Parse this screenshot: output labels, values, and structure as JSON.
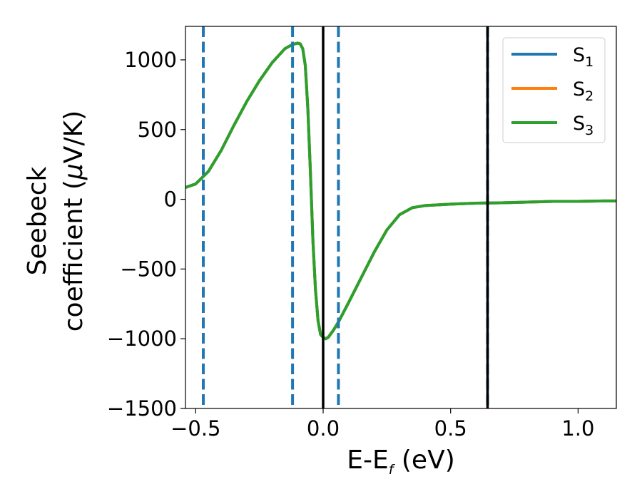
{
  "chart_data": {
    "type": "line",
    "xlabel": "E-E",
    "xlabel_sub": "f",
    "xlabel_unit": " (eV)",
    "ylabel_line1": "Seebeck",
    "ylabel_line2_prefix": "coefficient  (",
    "ylabel_line2_mu": "μ",
    "ylabel_line2_suffix": "V/K)",
    "xlim": [
      -0.54,
      1.15
    ],
    "ylim": [
      -1500,
      1240
    ],
    "xticks": [
      -0.5,
      0.0,
      0.5,
      1.0
    ],
    "xtick_labels": [
      "−0.5",
      "0.0",
      "0.5",
      "1.0"
    ],
    "yticks": [
      -1500,
      -1000,
      -500,
      0,
      500,
      1000
    ],
    "ytick_labels": [
      "−1500",
      "−1000",
      "−500",
      "0",
      "500",
      "1000"
    ],
    "grid": false,
    "legend_position": "top-right",
    "series": [
      {
        "name": "S",
        "sub": "1",
        "color": "#1f77b4",
        "x": [
          -0.54,
          -0.5,
          -0.45,
          -0.4,
          -0.35,
          -0.3,
          -0.25,
          -0.2,
          -0.15,
          -0.12,
          -0.1,
          -0.09,
          -0.08,
          -0.07,
          -0.06,
          -0.05,
          -0.04,
          -0.03,
          -0.02,
          -0.01,
          0.0,
          0.01,
          0.02,
          0.04,
          0.06,
          0.08,
          0.1,
          0.15,
          0.2,
          0.25,
          0.3,
          0.35,
          0.4,
          0.5,
          0.6,
          0.7,
          0.8,
          0.9,
          1.0,
          1.1,
          1.15
        ],
        "y": [
          85,
          110,
          200,
          350,
          530,
          700,
          850,
          980,
          1080,
          1110,
          1120,
          1115,
          1080,
          960,
          650,
          200,
          -300,
          -650,
          -870,
          -970,
          -990,
          -1000,
          -990,
          -940,
          -880,
          -810,
          -740,
          -560,
          -380,
          -220,
          -110,
          -60,
          -45,
          -35,
          -28,
          -25,
          -20,
          -15,
          -15,
          -12,
          -12
        ]
      },
      {
        "name": "S",
        "sub": "2",
        "color": "#ff7f0e",
        "x": [
          -0.54,
          -0.5,
          -0.45,
          -0.4,
          -0.35,
          -0.3,
          -0.25,
          -0.2,
          -0.15,
          -0.12,
          -0.1,
          -0.09,
          -0.08,
          -0.07,
          -0.06,
          -0.05,
          -0.04,
          -0.03,
          -0.02,
          -0.01,
          0.0,
          0.01,
          0.02,
          0.04,
          0.06,
          0.08,
          0.1,
          0.15,
          0.2,
          0.25,
          0.3,
          0.35,
          0.4,
          0.5,
          0.6,
          0.7,
          0.8,
          0.9,
          1.0,
          1.1,
          1.15
        ],
        "y": [
          85,
          110,
          200,
          350,
          530,
          700,
          850,
          980,
          1080,
          1110,
          1120,
          1115,
          1080,
          960,
          650,
          200,
          -300,
          -650,
          -870,
          -970,
          -990,
          -1000,
          -990,
          -940,
          -880,
          -810,
          -740,
          -560,
          -380,
          -220,
          -110,
          -60,
          -45,
          -35,
          -28,
          -25,
          -20,
          -15,
          -15,
          -12,
          -12
        ]
      },
      {
        "name": "S",
        "sub": "3",
        "color": "#2ca02c",
        "x": [
          -0.54,
          -0.5,
          -0.45,
          -0.4,
          -0.35,
          -0.3,
          -0.25,
          -0.2,
          -0.15,
          -0.12,
          -0.1,
          -0.09,
          -0.08,
          -0.07,
          -0.06,
          -0.05,
          -0.04,
          -0.03,
          -0.02,
          -0.01,
          0.0,
          0.01,
          0.02,
          0.04,
          0.06,
          0.08,
          0.1,
          0.15,
          0.2,
          0.25,
          0.3,
          0.35,
          0.4,
          0.5,
          0.6,
          0.7,
          0.8,
          0.9,
          1.0,
          1.1,
          1.15
        ],
        "y": [
          85,
          110,
          200,
          350,
          530,
          700,
          850,
          980,
          1080,
          1110,
          1120,
          1115,
          1080,
          960,
          650,
          200,
          -300,
          -650,
          -870,
          -970,
          -990,
          -1000,
          -990,
          -940,
          -880,
          -810,
          -740,
          -560,
          -380,
          -220,
          -110,
          -60,
          -45,
          -35,
          -28,
          -25,
          -20,
          -15,
          -15,
          -12,
          -12
        ]
      }
    ],
    "vlines": [
      {
        "x": -0.47,
        "style": "dashed",
        "color": "#1f77b4"
      },
      {
        "x": -0.12,
        "style": "dashed",
        "color": "#1f77b4"
      },
      {
        "x": 0.06,
        "style": "dashed",
        "color": "#1f77b4"
      },
      {
        "x": 0.645,
        "style": "dashed",
        "color": "#1f77b4"
      },
      {
        "x": 0.0,
        "style": "solid",
        "color": "#000000"
      },
      {
        "x": 0.645,
        "style": "solid",
        "color": "#000000"
      }
    ]
  }
}
